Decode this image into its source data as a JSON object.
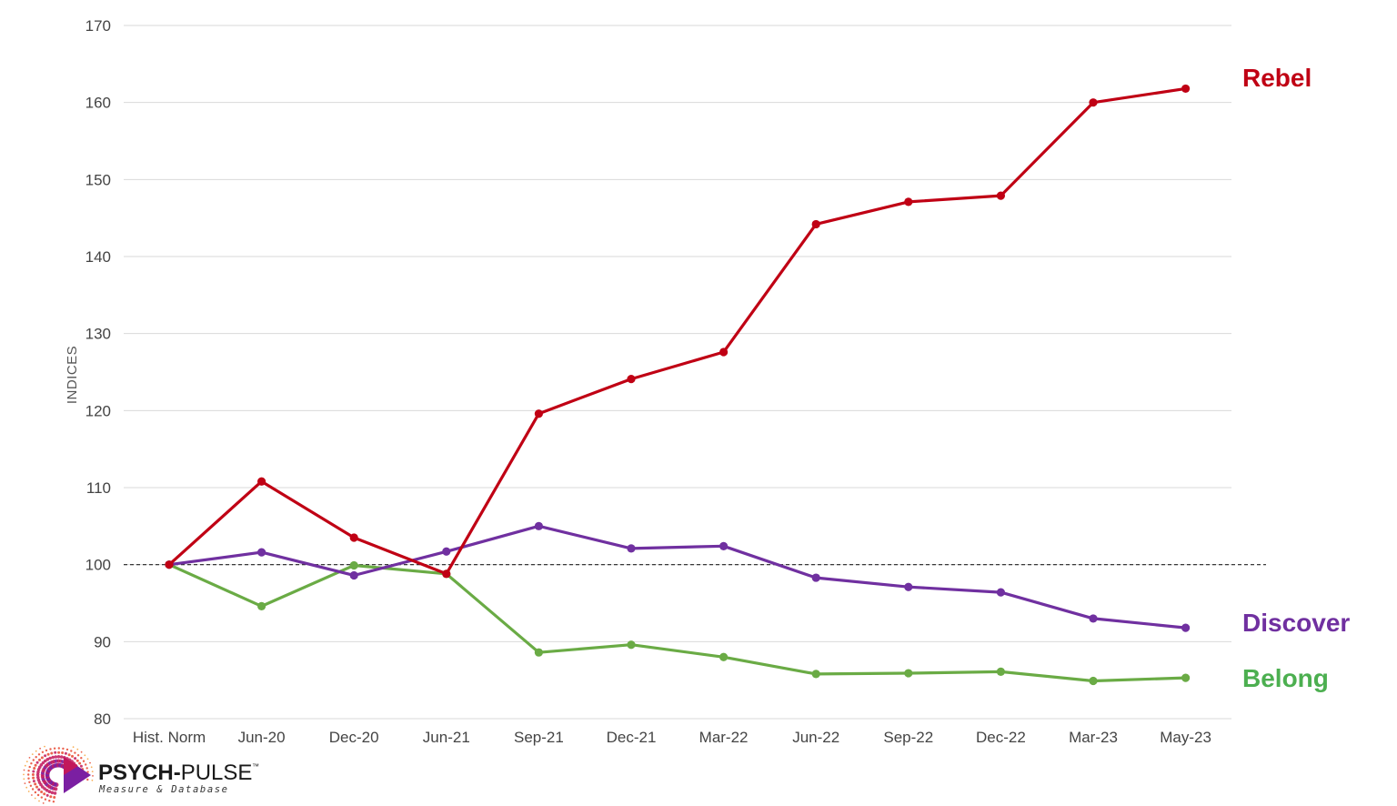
{
  "chart_data": {
    "type": "line",
    "ylabel": "INDICES",
    "xlabel": "",
    "ylim": [
      80,
      170
    ],
    "yticks": [
      80,
      90,
      100,
      110,
      120,
      130,
      140,
      150,
      160,
      170
    ],
    "grid": "horizontal",
    "reference_line": {
      "y": 100,
      "style": "dashed",
      "color": "#222222"
    },
    "categories": [
      "Hist. Norm",
      "Jun-20",
      "Dec-20",
      "Jun-21",
      "Sep-21",
      "Dec-21",
      "Mar-22",
      "Jun-22",
      "Sep-22",
      "Dec-22",
      "Mar-23",
      "May-23"
    ],
    "series": [
      {
        "name": "Rebel",
        "color": "#C00014",
        "label_position": "right-end",
        "values": [
          100,
          110.8,
          103.5,
          98.8,
          119.6,
          124.1,
          127.6,
          144.2,
          147.1,
          147.9,
          160.0,
          161.8
        ]
      },
      {
        "name": "Discover",
        "color": "#7030A0",
        "label_position": "right-end",
        "values": [
          100,
          101.6,
          98.6,
          101.7,
          105.0,
          102.1,
          102.4,
          98.3,
          97.1,
          96.4,
          93.0,
          91.8
        ]
      },
      {
        "name": "Belong",
        "color": "#6AAB45",
        "label_position": "right-end",
        "values": [
          100,
          94.6,
          99.9,
          98.8,
          88.6,
          89.6,
          88.0,
          85.8,
          85.9,
          86.1,
          84.9,
          85.3
        ]
      }
    ],
    "series_label_colors": {
      "Rebel": "#C00014",
      "Discover": "#7030A0",
      "Belong": "#4CAF50"
    }
  },
  "logo": {
    "name_bold": "PSYCH-",
    "name_light": "PULSE",
    "trademark": "™",
    "tagline": "Measure & Database",
    "colors": [
      "#F7A23B",
      "#E8462F",
      "#C2185B",
      "#7B1FA2"
    ]
  }
}
